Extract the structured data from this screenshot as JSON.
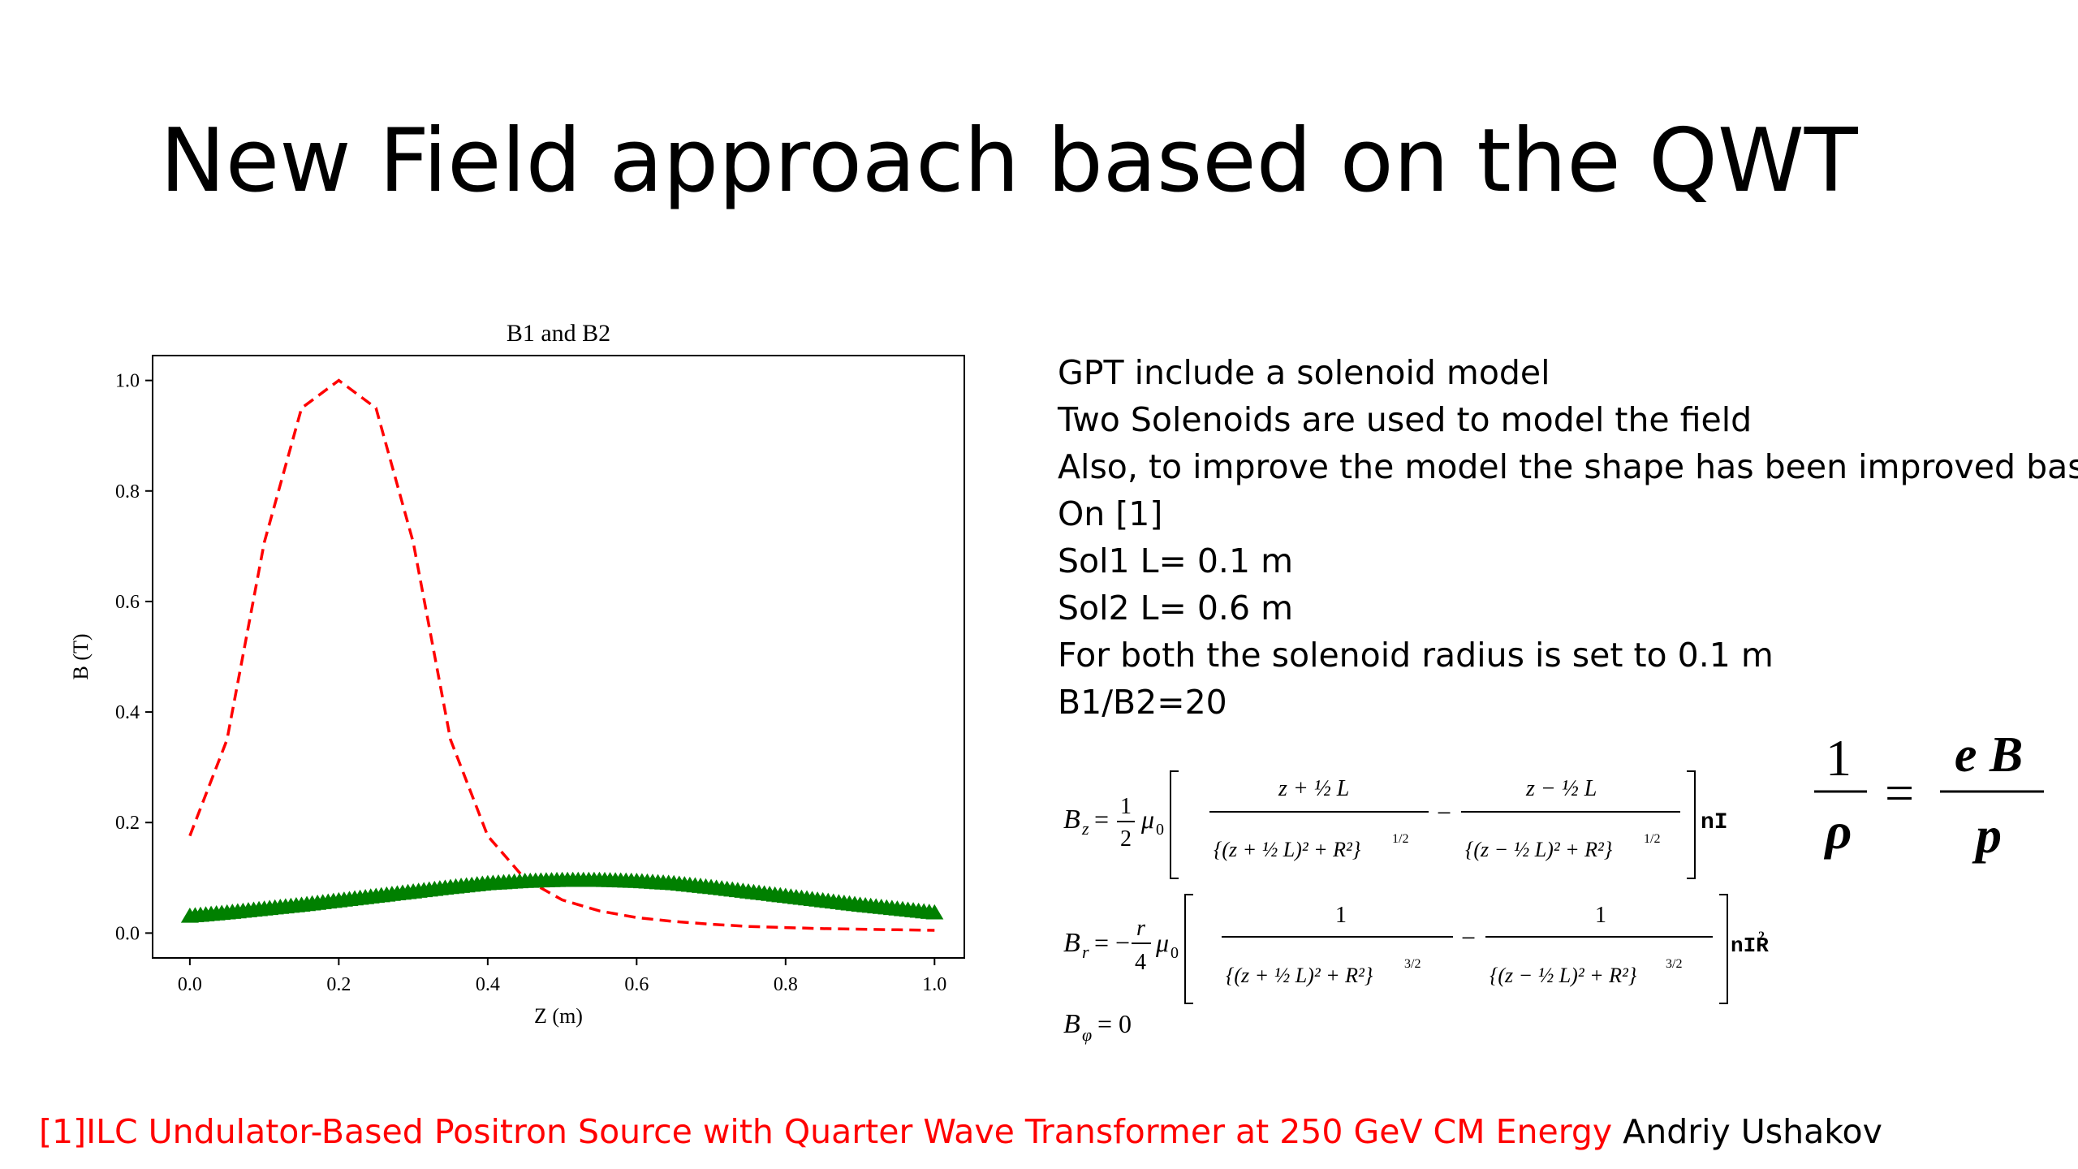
{
  "slide": {
    "title": "New Field approach based on the QWT",
    "bullets": [
      "GPT include a solenoid model",
      "Two Solenoids are used to model the field",
      "Also, to improve the model the shape has been improved based",
      "On [1]",
      "Sol1 L= 0.1 m",
      "Sol2 L= 0.6 m",
      "For both the solenoid radius is set to 0.1 m",
      "B1/B2=20"
    ],
    "citation": {
      "reference": "[1]ILC Undulator-Based Positron Source with Quarter Wave Transformer at 250 GeV CM Energy",
      "author": " Andriy Ushakov"
    },
    "formulas": {
      "bz_label": "B",
      "bz_sub": "z",
      "br_label": "B",
      "br_sub": "r",
      "bphi_label": "B",
      "bphi_sub": "φ",
      "bphi_value": "= 0",
      "bz_factor": "nI",
      "br_factor": "nIR",
      "rho_lhs_num": "1",
      "rho_lhs_den": "ρ",
      "rho_rhs_num": "e B",
      "rho_rhs_den": "p"
    }
  },
  "chart_data": {
    "type": "line",
    "title": "B1 and B2",
    "xlabel": "Z (m)",
    "ylabel": "B (T)",
    "xlim": [
      -0.05,
      1.04
    ],
    "ylim": [
      -0.045,
      1.045
    ],
    "xticks": [
      0.0,
      0.2,
      0.4,
      0.6,
      0.8,
      1.0
    ],
    "xtick_labels": [
      "0.0",
      "0.2",
      "0.4",
      "0.6",
      "0.8",
      "1.0"
    ],
    "yticks": [
      0.0,
      0.2,
      0.4,
      0.6,
      0.8,
      1.0
    ],
    "ytick_labels": [
      "0.0",
      "0.2",
      "0.4",
      "0.6",
      "0.8",
      "1.0"
    ],
    "grid": false,
    "series": [
      {
        "style": "dashed",
        "color": "#ff0000",
        "x": [
          0.0,
          0.05,
          0.1,
          0.15,
          0.2,
          0.25,
          0.3,
          0.35,
          0.4,
          0.45,
          0.5,
          0.55,
          0.6,
          0.65,
          0.7,
          0.75,
          0.8,
          0.85,
          0.9,
          0.95,
          1.0
        ],
        "y": [
          0.176,
          0.35,
          0.707,
          0.95,
          1.0,
          0.95,
          0.707,
          0.35,
          0.176,
          0.098,
          0.06,
          0.04,
          0.028,
          0.021,
          0.016,
          0.012,
          0.01,
          0.008,
          0.007,
          0.006,
          0.005
        ]
      },
      {
        "style": "triangle-markers",
        "color": "#008000",
        "x": [
          0.0,
          0.05,
          0.1,
          0.15,
          0.2,
          0.25,
          0.3,
          0.35,
          0.4,
          0.45,
          0.5,
          0.55,
          0.6,
          0.65,
          0.7,
          0.75,
          0.8,
          0.85,
          0.9,
          0.95,
          1.0
        ],
        "y": [
          0.03,
          0.036,
          0.043,
          0.05,
          0.058,
          0.066,
          0.074,
          0.082,
          0.089,
          0.093,
          0.095,
          0.095,
          0.093,
          0.089,
          0.082,
          0.074,
          0.066,
          0.058,
          0.05,
          0.043,
          0.036
        ]
      }
    ]
  }
}
